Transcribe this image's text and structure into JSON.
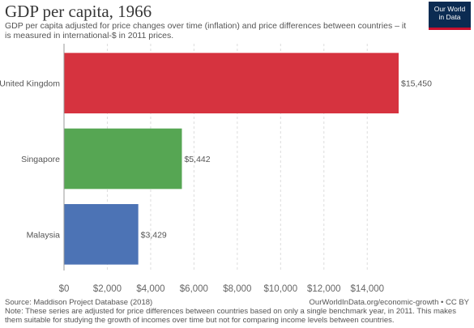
{
  "header": {
    "title": "GDP per capita, 1966",
    "subtitle": "GDP per capita adjusted for price changes over time (inflation) and price differences between countries – it is measured in international-$ in 2011 prices."
  },
  "logo": {
    "line1": "Our World",
    "line2": "in Data"
  },
  "footer": {
    "source": "Source: Maddison Project Database (2018)",
    "url": "OurWorldInData.org/economic-growth • CC BY",
    "note": "Note: These series are adjusted for price differences between countries based on only a single benchmark year, in 2011. This makes them suitable for studying the growth of incomes over time but not for comparing income levels between countries."
  },
  "colors": {
    "United Kingdom": "#d6333f",
    "Singapore": "#56a653",
    "Malaysia": "#4c73b5",
    "logo_bg": "#0b2b52",
    "logo_accent": "#c8102e"
  },
  "chart_data": {
    "type": "bar",
    "orientation": "horizontal",
    "categories": [
      "United Kingdom",
      "Singapore",
      "Malaysia"
    ],
    "values": [
      15450,
      5442,
      3429
    ],
    "value_labels": [
      "$15,450",
      "$5,442",
      "$3,429"
    ],
    "xlim": [
      0,
      15450
    ],
    "xticks": [
      0,
      2000,
      4000,
      6000,
      8000,
      10000,
      12000,
      14000
    ],
    "xtick_labels": [
      "$0",
      "$2,000",
      "$4,000",
      "$6,000",
      "$8,000",
      "$10,000",
      "$12,000",
      "$14,000"
    ],
    "grid": true
  }
}
